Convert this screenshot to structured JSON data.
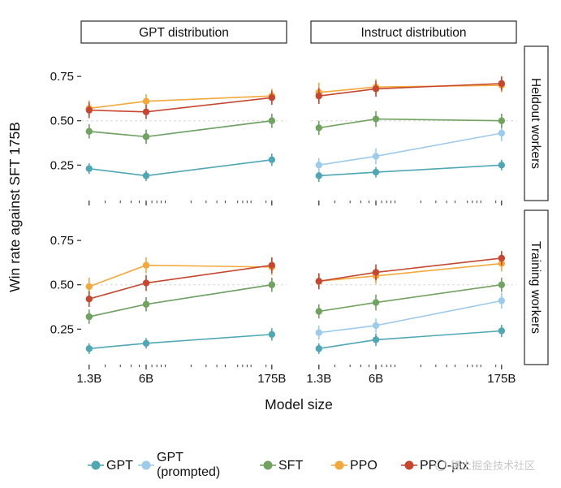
{
  "watermark": {
    "text": "稀土掘金技术社区"
  },
  "chart_data": {
    "type": "line",
    "xlabel": "Model size",
    "ylabel": "Win rate against SFT 175B",
    "x_scale": "log",
    "x_values": [
      1.3,
      6,
      175
    ],
    "x_tick_labels": [
      "1.3B",
      "6B",
      "175B"
    ],
    "x_minor_ticks": [
      2,
      3,
      4,
      5,
      7,
      8,
      9,
      10,
      20,
      30,
      40,
      50,
      70,
      80,
      90,
      100,
      150
    ],
    "y_ticks": [
      "0.25",
      "0.50",
      "0.75"
    ],
    "y_tick_values": [
      0.25,
      0.5,
      0.75
    ],
    "ylim": [
      0.05,
      0.92
    ],
    "reference_line_y": 0.5,
    "grid": "off",
    "legend_position": "bottom",
    "facets": {
      "columns": [
        "GPT distribution",
        "Instruct distribution"
      ],
      "rows": [
        "Heldout workers",
        "Training workers"
      ]
    },
    "legend": [
      {
        "name": "GPT",
        "label_lines": [
          "GPT"
        ],
        "color": "#4FA7B4"
      },
      {
        "name": "GPT (prompted)",
        "label_lines": [
          "GPT",
          "(prompted)"
        ],
        "color": "#9CCBEC"
      },
      {
        "name": "SFT",
        "label_lines": [
          "SFT"
        ],
        "color": "#71A25F"
      },
      {
        "name": "PPO",
        "label_lines": [
          "PPO"
        ],
        "color": "#F3A83B"
      },
      {
        "name": "PPO-ptx",
        "label_lines": [
          "PPO-ptx"
        ],
        "color": "#C5472F"
      }
    ],
    "panels": [
      {
        "col": 0,
        "row": 0,
        "column_label": "GPT distribution",
        "row_label": "Heldout workers",
        "series": [
          {
            "name": "GPT",
            "values": [
              0.23,
              0.19,
              0.28
            ],
            "errors": [
              0.03,
              0.03,
              0.035
            ]
          },
          {
            "name": "GPT (prompted)",
            "values": [
              0.44,
              0.41,
              0.5
            ],
            "errors": [
              0.04,
              0.04,
              0.04
            ]
          },
          {
            "name": "SFT",
            "values": [
              0.44,
              0.41,
              0.5
            ],
            "errors": [
              0.04,
              0.04,
              0.04
            ]
          },
          {
            "name": "PPO",
            "values": [
              0.57,
              0.61,
              0.64
            ],
            "errors": [
              0.045,
              0.04,
              0.04
            ]
          },
          {
            "name": "PPO-ptx",
            "values": [
              0.56,
              0.55,
              0.63
            ],
            "errors": [
              0.045,
              0.04,
              0.04
            ]
          }
        ]
      },
      {
        "col": 1,
        "row": 0,
        "column_label": "Instruct distribution",
        "row_label": "Heldout workers",
        "series": [
          {
            "name": "GPT",
            "values": [
              0.19,
              0.21,
              0.25
            ],
            "errors": [
              0.035,
              0.03,
              0.03
            ]
          },
          {
            "name": "GPT (prompted)",
            "values": [
              0.25,
              0.3,
              0.43
            ],
            "errors": [
              0.04,
              0.045,
              0.045
            ]
          },
          {
            "name": "SFT",
            "values": [
              0.46,
              0.51,
              0.5
            ],
            "errors": [
              0.04,
              0.045,
              0.04
            ]
          },
          {
            "name": "PPO",
            "values": [
              0.66,
              0.69,
              0.7
            ],
            "errors": [
              0.055,
              0.045,
              0.04
            ]
          },
          {
            "name": "PPO-ptx",
            "values": [
              0.64,
              0.68,
              0.71
            ],
            "errors": [
              0.045,
              0.045,
              0.04
            ]
          }
        ]
      },
      {
        "col": 0,
        "row": 1,
        "column_label": "GPT distribution",
        "row_label": "Training workers",
        "series": [
          {
            "name": "GPT",
            "values": [
              0.14,
              0.17,
              0.22
            ],
            "errors": [
              0.03,
              0.03,
              0.035
            ]
          },
          {
            "name": "GPT (prompted)",
            "values": [
              0.32,
              0.39,
              0.5
            ],
            "errors": [
              0.04,
              0.04,
              0.04
            ]
          },
          {
            "name": "SFT",
            "values": [
              0.32,
              0.39,
              0.5
            ],
            "errors": [
              0.04,
              0.04,
              0.04
            ]
          },
          {
            "name": "PPO",
            "values": [
              0.49,
              0.61,
              0.6
            ],
            "errors": [
              0.05,
              0.045,
              0.045
            ]
          },
          {
            "name": "PPO-ptx",
            "values": [
              0.42,
              0.51,
              0.61
            ],
            "errors": [
              0.045,
              0.045,
              0.045
            ]
          }
        ]
      },
      {
        "col": 1,
        "row": 1,
        "column_label": "Instruct distribution",
        "row_label": "Training workers",
        "series": [
          {
            "name": "GPT",
            "values": [
              0.14,
              0.19,
              0.24
            ],
            "errors": [
              0.03,
              0.035,
              0.035
            ]
          },
          {
            "name": "GPT (prompted)",
            "values": [
              0.23,
              0.27,
              0.41
            ],
            "errors": [
              0.04,
              0.04,
              0.045
            ]
          },
          {
            "name": "SFT",
            "values": [
              0.35,
              0.4,
              0.5
            ],
            "errors": [
              0.04,
              0.045,
              0.04
            ]
          },
          {
            "name": "PPO",
            "values": [
              0.52,
              0.55,
              0.62
            ],
            "errors": [
              0.045,
              0.045,
              0.045
            ]
          },
          {
            "name": "PPO-ptx",
            "values": [
              0.52,
              0.57,
              0.65
            ],
            "errors": [
              0.045,
              0.045,
              0.04
            ]
          }
        ]
      }
    ]
  }
}
